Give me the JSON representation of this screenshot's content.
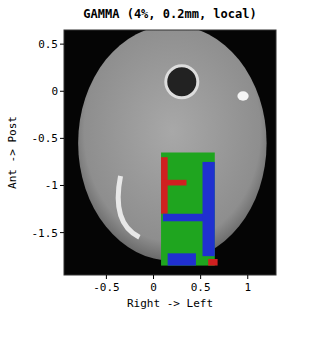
{
  "chart_data": {
    "type": "image",
    "title": "GAMMA (4%, 0.2mm, local)",
    "x_label": "Right  -> Left",
    "y_label": "Ant  -> Post",
    "xlim": [
      -0.95,
      1.3
    ],
    "ylim": [
      -1.95,
      0.65
    ],
    "xticks": [
      -0.5,
      0,
      0.5,
      1
    ],
    "yticks": [
      -1.5,
      -1,
      -0.5,
      0,
      0.5
    ],
    "regions": [
      {
        "x": [
          0.08,
          0.65
        ],
        "y": [
          -1.85,
          -0.65
        ],
        "color": "#1fa51f"
      },
      {
        "x": [
          0.08,
          0.15
        ],
        "y": [
          -1.3,
          -0.7
        ],
        "color": "#d02020"
      },
      {
        "x": [
          0.1,
          0.35
        ],
        "y": [
          -1.0,
          -0.94
        ],
        "color": "#d02020"
      },
      {
        "x": [
          0.1,
          0.55
        ],
        "y": [
          -1.38,
          -1.3
        ],
        "color": "#2030d0"
      },
      {
        "x": [
          0.52,
          0.65
        ],
        "y": [
          -1.75,
          -0.75
        ],
        "color": "#2030d0"
      },
      {
        "x": [
          0.15,
          0.45
        ],
        "y": [
          -1.85,
          -1.72
        ],
        "color": "#2030d0"
      },
      {
        "x": [
          0.58,
          0.68
        ],
        "y": [
          -1.85,
          -1.78
        ],
        "color": "#d02020"
      }
    ]
  }
}
